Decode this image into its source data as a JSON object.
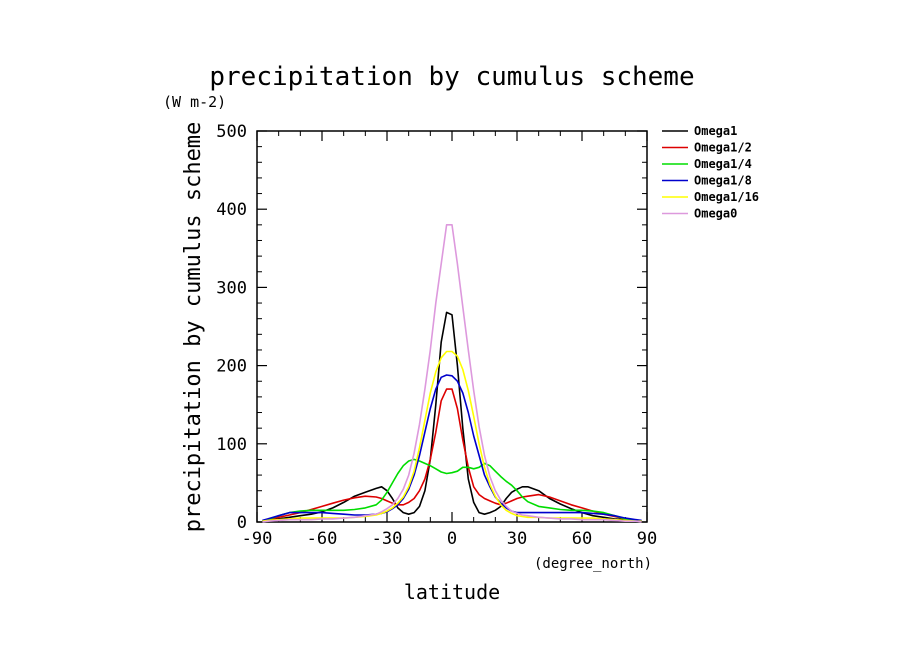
{
  "chart_data": {
    "type": "line",
    "title": "precipitation by cumulus scheme",
    "units_label": "(W m-2)",
    "ylabel": "precipitation by cumulus scheme",
    "xlabel": "latitude",
    "xunits": "(degree_north)",
    "xlim": [
      -90,
      90
    ],
    "ylim": [
      0,
      500
    ],
    "xticks": [
      -90,
      -60,
      -30,
      0,
      30,
      60,
      90
    ],
    "xtick_labels": [
      "-90",
      "-60",
      "-30",
      "0",
      "30",
      "60",
      "90"
    ],
    "yticks": [
      0,
      100,
      200,
      300,
      400,
      500
    ],
    "ytick_labels": [
      "0",
      "100",
      "200",
      "300",
      "400",
      "500"
    ],
    "grid": false,
    "legend_position": "right",
    "x": [
      -87.5,
      -85,
      -80,
      -75,
      -70,
      -65,
      -60,
      -55,
      -50,
      -45,
      -40,
      -35,
      -32.5,
      -30,
      -27.5,
      -25,
      -22.5,
      -20,
      -17.5,
      -15,
      -12.5,
      -10,
      -7.5,
      -5,
      -2.5,
      0,
      2.5,
      5,
      7.5,
      10,
      12.5,
      15,
      17.5,
      20,
      22.5,
      25,
      27.5,
      30,
      32.5,
      35,
      40,
      45,
      50,
      55,
      60,
      65,
      70,
      75,
      80,
      85,
      87.5
    ],
    "series": [
      {
        "name": "Omega1",
        "color": "#000000",
        "values": [
          1,
          2,
          4,
          6,
          8,
          10,
          13,
          18,
          25,
          33,
          38,
          43,
          45,
          40,
          30,
          18,
          12,
          10,
          12,
          20,
          40,
          80,
          150,
          230,
          268,
          265,
          200,
          120,
          55,
          25,
          12,
          10,
          12,
          15,
          20,
          30,
          38,
          42,
          45,
          45,
          40,
          30,
          23,
          17,
          12,
          8,
          6,
          4,
          3,
          2,
          1
        ]
      },
      {
        "name": "Omega1/2",
        "color": "#dd0000",
        "values": [
          1,
          3,
          6,
          9,
          12,
          16,
          20,
          24,
          28,
          31,
          33,
          32,
          30,
          27,
          24,
          22,
          22,
          25,
          30,
          40,
          55,
          80,
          115,
          155,
          170,
          170,
          145,
          105,
          70,
          45,
          35,
          30,
          27,
          24,
          22,
          24,
          27,
          30,
          32,
          33,
          35,
          32,
          27,
          22,
          18,
          14,
          10,
          7,
          4,
          2,
          1
        ]
      },
      {
        "name": "Omega1/4",
        "color": "#00dd00",
        "values": [
          1,
          3,
          8,
          12,
          14,
          15,
          15,
          15,
          15,
          16,
          18,
          22,
          28,
          38,
          50,
          62,
          72,
          78,
          80,
          78,
          75,
          72,
          68,
          64,
          62,
          63,
          65,
          70,
          70,
          68,
          70,
          75,
          72,
          65,
          58,
          52,
          47,
          40,
          32,
          26,
          20,
          18,
          16,
          15,
          15,
          14,
          12,
          8,
          4,
          2,
          1
        ]
      },
      {
        "name": "Omega1/8",
        "color": "#0000cc",
        "values": [
          2,
          4,
          8,
          12,
          12,
          12,
          12,
          11,
          10,
          9,
          9,
          10,
          11,
          13,
          17,
          22,
          30,
          42,
          60,
          85,
          115,
          145,
          170,
          185,
          188,
          187,
          180,
          165,
          140,
          110,
          85,
          60,
          45,
          32,
          24,
          18,
          14,
          12,
          12,
          12,
          12,
          12,
          12,
          12,
          12,
          11,
          10,
          8,
          5,
          3,
          2
        ]
      },
      {
        "name": "Omega1/16",
        "color": "#ffff00",
        "values": [
          1,
          2,
          3,
          4,
          5,
          5,
          5,
          5,
          5,
          6,
          7,
          9,
          11,
          14,
          18,
          24,
          32,
          45,
          65,
          95,
          130,
          165,
          192,
          210,
          218,
          218,
          212,
          195,
          168,
          135,
          100,
          70,
          48,
          33,
          22,
          15,
          11,
          8,
          7,
          6,
          6,
          5,
          5,
          5,
          5,
          5,
          4,
          3,
          2,
          1,
          1
        ]
      },
      {
        "name": "Omega0",
        "color": "#dd99dd",
        "values": [
          0,
          1,
          2,
          3,
          3,
          3,
          4,
          4,
          5,
          6,
          8,
          10,
          13,
          17,
          22,
          30,
          42,
          60,
          88,
          125,
          170,
          220,
          280,
          330,
          380,
          380,
          330,
          275,
          220,
          168,
          122,
          85,
          58,
          40,
          28,
          20,
          14,
          11,
          9,
          8,
          6,
          5,
          4,
          4,
          3,
          3,
          3,
          2,
          1,
          1,
          0
        ]
      }
    ]
  }
}
